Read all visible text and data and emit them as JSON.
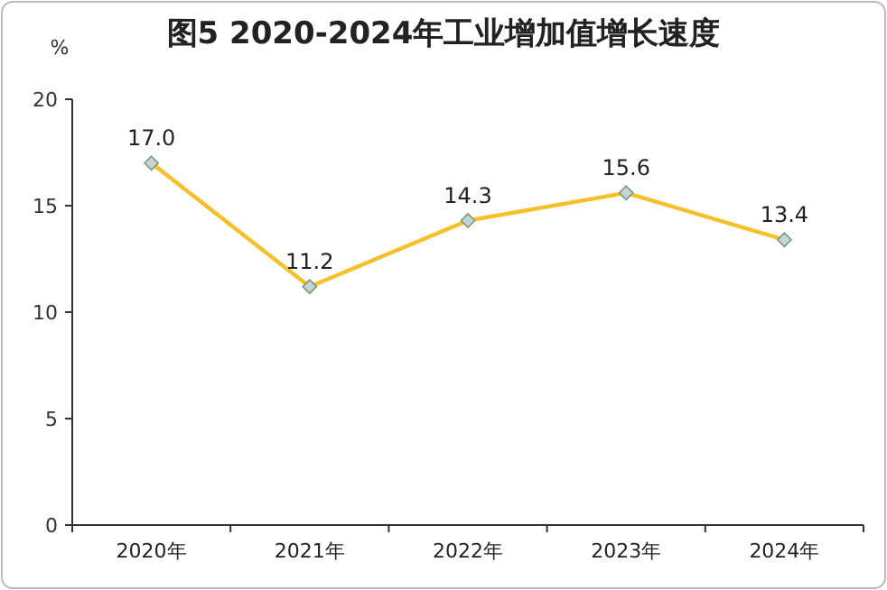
{
  "chart_data": {
    "type": "line",
    "title": "图5 2020-2024年工业增加值增长速度",
    "ylabel": "%",
    "categories": [
      "2020年",
      "2021年",
      "2022年",
      "2023年",
      "2024年"
    ],
    "series": [
      {
        "color": "#f5c02a",
        "values": [
          17.0,
          11.2,
          14.3,
          15.6,
          13.4
        ],
        "value_labels": [
          "17.0",
          "11.2",
          "14.3",
          "15.6",
          "13.4"
        ]
      }
    ],
    "ylim": [
      0,
      20
    ],
    "yticks": [
      0,
      5,
      10,
      15,
      20
    ],
    "marker": "diamond",
    "grid": false
  }
}
